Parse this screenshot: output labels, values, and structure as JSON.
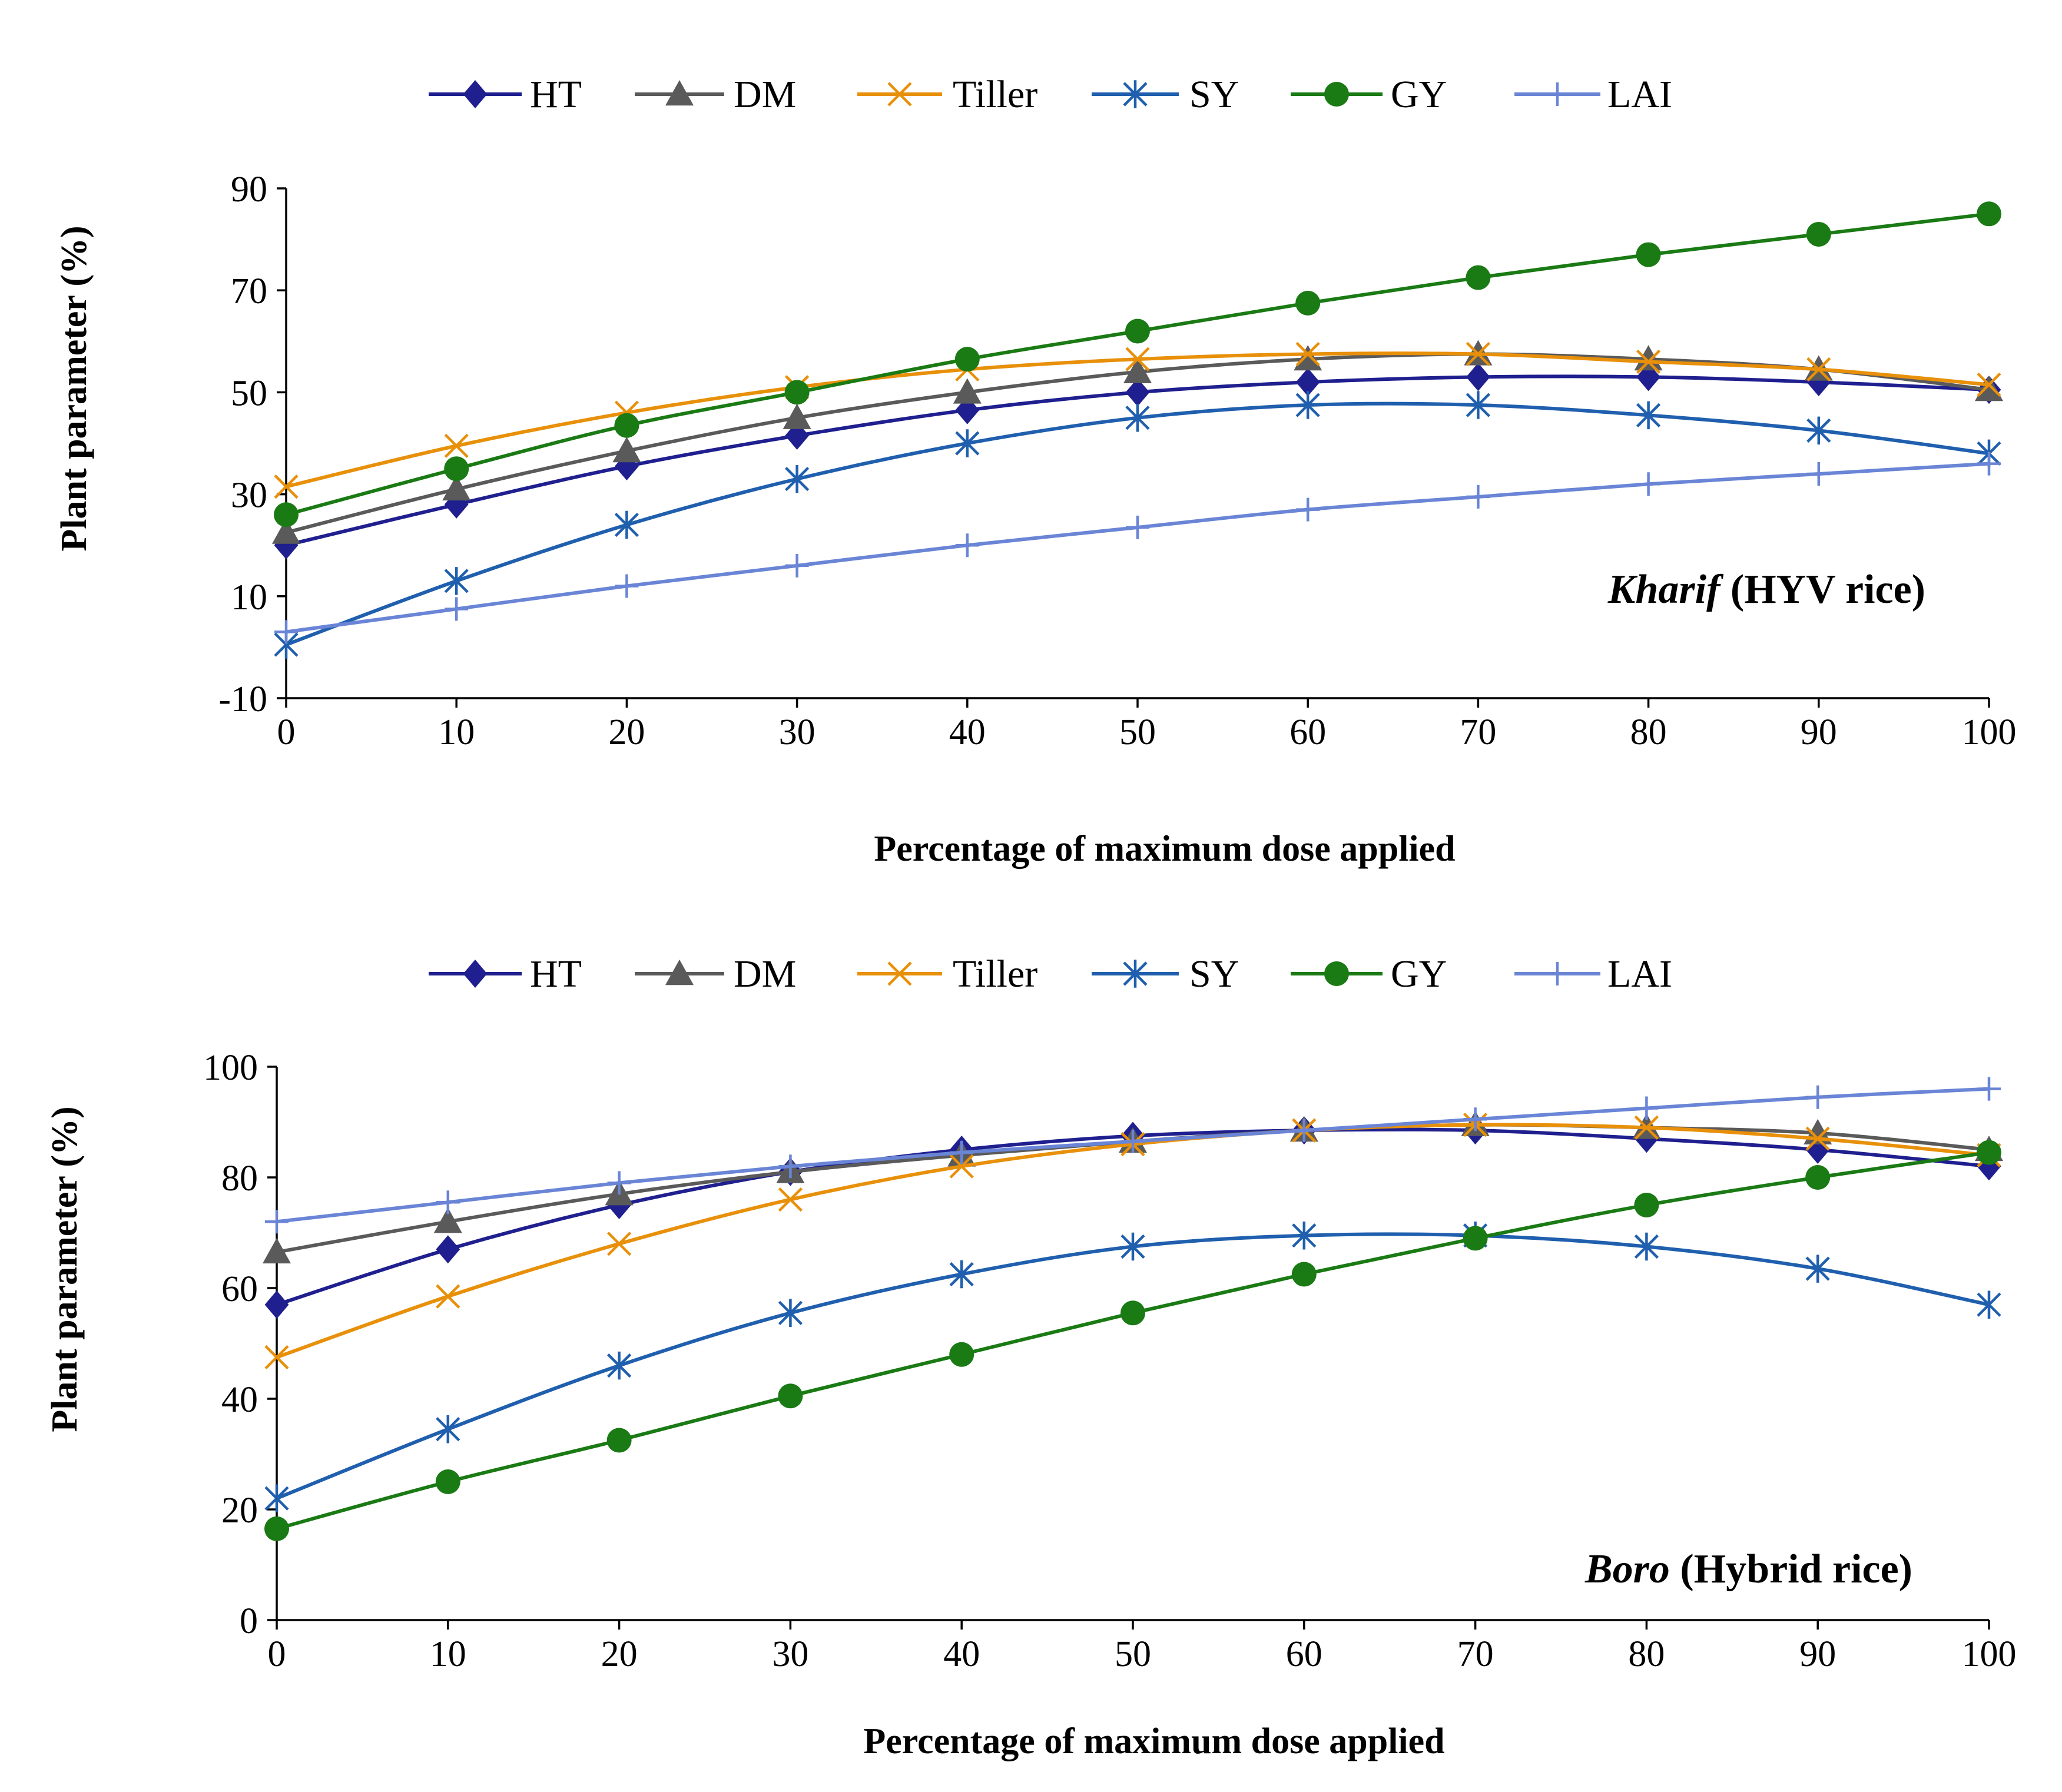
{
  "chart_data": [
    {
      "type": "line",
      "xlabel": "Percentage  of maximum dose applied",
      "ylabel": "Plant parameter (%)",
      "annotation": {
        "italic": "Kharif",
        "rest": " (HYV rice)"
      },
      "x": [
        0,
        10,
        20,
        30,
        40,
        50,
        60,
        70,
        80,
        90,
        100
      ],
      "xlim": [
        0,
        100
      ],
      "xticks": [
        "0",
        "10",
        "20",
        "30",
        "40",
        "50",
        "60",
        "70",
        "80",
        "90",
        "100"
      ],
      "ylim": [
        -10,
        90
      ],
      "yticks": [
        "-10",
        "10",
        "30",
        "50",
        "70",
        "90"
      ],
      "legend_position": "top",
      "series": [
        {
          "name": "HT",
          "color": "#1f1f8f",
          "marker": "diamond",
          "values": [
            20,
            28,
            35.5,
            41.5,
            46.5,
            50,
            52,
            53,
            53,
            52,
            50.5
          ]
        },
        {
          "name": "DM",
          "color": "#5a5a5a",
          "marker": "triangle",
          "values": [
            22.5,
            31,
            38.5,
            45,
            50,
            54,
            56.5,
            57.5,
            56.5,
            54.5,
            50.5
          ]
        },
        {
          "name": "Tiller",
          "color": "#e8900a",
          "marker": "x",
          "values": [
            31.5,
            39.5,
            46,
            51,
            54.5,
            56.5,
            57.5,
            57.5,
            56,
            54.5,
            51.5
          ]
        },
        {
          "name": "SY",
          "color": "#1f5fae",
          "marker": "asterisk",
          "values": [
            0.5,
            13,
            24,
            33,
            40,
            45,
            47.5,
            47.5,
            45.5,
            42.5,
            38
          ]
        },
        {
          "name": "GY",
          "color": "#1a7a14",
          "marker": "circle",
          "values": [
            26,
            35,
            43.5,
            50,
            56.5,
            62,
            67.5,
            72.5,
            77,
            81,
            85
          ]
        },
        {
          "name": "LAI",
          "color": "#6a85d6",
          "marker": "plus",
          "values": [
            3,
            7.5,
            12,
            16,
            20,
            23.5,
            27,
            29.5,
            32,
            34,
            36
          ]
        }
      ]
    },
    {
      "type": "line",
      "xlabel": "Percentage  of maximum dose applied",
      "ylabel": "Plant parameter (%)",
      "annotation": {
        "italic": "Boro",
        "rest": " (Hybrid rice)"
      },
      "x": [
        0,
        10,
        20,
        30,
        40,
        50,
        60,
        70,
        80,
        90,
        100
      ],
      "xlim": [
        0,
        100
      ],
      "xticks": [
        "0",
        "10",
        "20",
        "30",
        "40",
        "50",
        "60",
        "70",
        "80",
        "90",
        "100"
      ],
      "ylim": [
        0,
        100
      ],
      "yticks": [
        "0",
        "20",
        "40",
        "60",
        "80",
        "100"
      ],
      "legend_position": "top",
      "series": [
        {
          "name": "HT",
          "color": "#1f1f8f",
          "marker": "diamond",
          "values": [
            57,
            67,
            75,
            81,
            85,
            87.5,
            88.5,
            88.5,
            87,
            85,
            82
          ]
        },
        {
          "name": "DM",
          "color": "#5a5a5a",
          "marker": "triangle",
          "values": [
            66.5,
            72,
            77,
            81,
            84,
            86.5,
            88.5,
            89.5,
            89,
            88,
            85
          ]
        },
        {
          "name": "Tiller",
          "color": "#e8900a",
          "marker": "x",
          "values": [
            47.5,
            58.5,
            68,
            76,
            82,
            86,
            88.5,
            89.5,
            89,
            87,
            84
          ]
        },
        {
          "name": "SY",
          "color": "#1f5fae",
          "marker": "asterisk",
          "values": [
            22,
            34.5,
            46,
            55.5,
            62.5,
            67.5,
            69.5,
            69.5,
            67.5,
            63.5,
            57
          ]
        },
        {
          "name": "GY",
          "color": "#1a7a14",
          "marker": "circle",
          "values": [
            16.5,
            25,
            32.5,
            40.5,
            48,
            55.5,
            62.5,
            69,
            75,
            80,
            84.5
          ]
        },
        {
          "name": "LAI",
          "color": "#6a85d6",
          "marker": "plus",
          "values": [
            72,
            75.5,
            79,
            82,
            84.5,
            86.5,
            88.5,
            90.5,
            92.5,
            94.5,
            96
          ]
        }
      ]
    }
  ]
}
